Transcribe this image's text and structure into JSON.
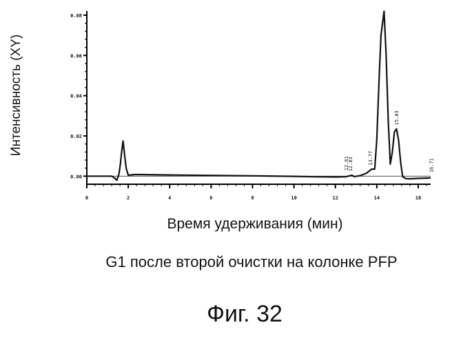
{
  "chart_data": {
    "type": "line",
    "ylabel": "Интенсивность (XY)",
    "xlabel": "Время удерживания (мин)",
    "xlim": [
      0,
      16.6
    ],
    "ylim": [
      -0.004,
      0.08
    ],
    "x_ticks": [
      "0",
      "2",
      "4",
      "6",
      "8",
      "10",
      "12",
      "14",
      "16"
    ],
    "x_tick_values": [
      0,
      2,
      4,
      6,
      8,
      10,
      12,
      14,
      16
    ],
    "y_ticks": [
      "0.00",
      "0.02",
      "0.04",
      "0.06",
      "0.08"
    ],
    "y_tick_values": [
      0,
      0.02,
      0.04,
      0.06,
      0.08
    ],
    "grid": false,
    "series": [
      {
        "x": [
          0,
          1.2,
          1.35,
          1.45,
          1.55,
          1.62,
          1.68,
          1.75,
          1.82,
          1.9,
          2.0,
          2.1,
          2.3,
          2.6,
          4,
          6,
          8,
          10,
          11,
          12,
          12.5,
          12.8,
          12.9,
          13.0,
          13.2,
          13.5,
          13.75,
          13.9,
          14.0,
          14.1,
          14.2,
          14.35,
          14.45,
          14.55,
          14.65,
          14.75,
          14.85,
          14.95,
          15.05,
          15.15,
          15.25,
          15.4,
          15.6,
          16,
          16.5,
          16.6
        ],
        "y": [
          0,
          0,
          -0.001,
          -0.002,
          0.001,
          0.006,
          0.012,
          0.0175,
          0.011,
          0.004,
          0.0005,
          0.0006,
          0.0008,
          0.0008,
          0.0006,
          0.0004,
          0.0002,
          -0.0001,
          -0.0003,
          -0.0004,
          -0.0003,
          0.0005,
          -0.0002,
          -0.0001,
          0.0003,
          0.0015,
          0.0035,
          0.0035,
          0.018,
          0.045,
          0.07,
          0.082,
          0.06,
          0.028,
          0.006,
          0.012,
          0.022,
          0.0235,
          0.018,
          0.007,
          -0.0003,
          -0.0012,
          -0.0013,
          -0.0011,
          -0.0009,
          -0.0008
        ]
      }
    ],
    "peak_labels": [
      {
        "x": 12.61,
        "y": 0.0014,
        "text": "12.61"
      },
      {
        "x": 12.81,
        "y": 0.001,
        "text": "12.83"
      },
      {
        "x": 13.77,
        "y": 0.004,
        "text": "13.77"
      },
      {
        "x": 15.03,
        "y": 0.024,
        "text": "15.03"
      },
      {
        "x": 16.71,
        "y": 0.0004,
        "text": "16.71"
      }
    ]
  },
  "caption": "G1 после второй очистки на колонке PFP",
  "figure_number": "Фиг. 32"
}
